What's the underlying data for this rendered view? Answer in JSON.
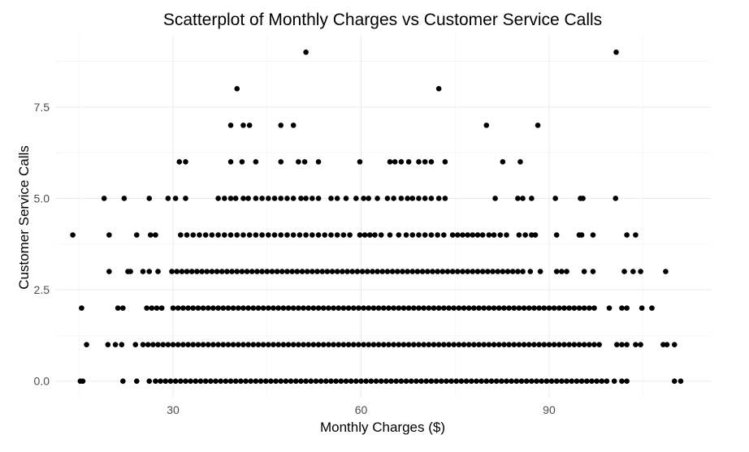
{
  "chart_data": {
    "type": "scatter",
    "title": "Scatterplot of Monthly Charges vs Customer Service Calls",
    "xlabel": "Monthly Charges ($)",
    "ylabel": "Customer Service Calls",
    "xlim": [
      11.2,
      115.8
    ],
    "ylim": [
      -0.45,
      9.45
    ],
    "x_ticks": [
      30,
      60,
      90
    ],
    "x_tick_labels": [
      "30",
      "60",
      "90"
    ],
    "y_ticks": [
      0,
      2.5,
      5,
      7.5
    ],
    "y_tick_labels": [
      "0.0",
      "2.5",
      "5.0",
      "7.5"
    ],
    "grid": true,
    "theme": "minimal",
    "point_color": "#000000",
    "points_by_calls": [
      {
        "calls": 9,
        "x": [
          51.2,
          100.7
        ]
      },
      {
        "calls": 8,
        "x": [
          40.2,
          72.4
        ]
      },
      {
        "calls": 7,
        "x": [
          39.2,
          41.2,
          42.2,
          47.2,
          49.2,
          80.0,
          88.2
        ]
      },
      {
        "calls": 6,
        "x": [
          31.0,
          32.0,
          39.2,
          41.0,
          43.2,
          47.2,
          50.0,
          51.0,
          53.2,
          59.8,
          64.6,
          65.4,
          66.4,
          67.6,
          69.2,
          70.2,
          71.2,
          73.4,
          82.6,
          85.4
        ]
      },
      {
        "calls": 5,
        "x": [
          19.0,
          22.2,
          26.2,
          29.2,
          30.4,
          32.0,
          37.2,
          38.2,
          39.2,
          40.0,
          41.2,
          42.0,
          43.2,
          44.2,
          45.2,
          46.2,
          47.2,
          48.2,
          49.2,
          50.4,
          51.2,
          52.2,
          53.2,
          55.2,
          56.2,
          57.6,
          59.2,
          60.4,
          61.2,
          62.6,
          64.2,
          65.2,
          66.4,
          67.4,
          68.2,
          69.2,
          70.2,
          71.2,
          72.4,
          73.4,
          81.4,
          85.0,
          85.8,
          87.2,
          91.0,
          95.0,
          95.4,
          100.6
        ]
      },
      {
        "calls": 4,
        "x": [
          14.0,
          19.8,
          24.2,
          26.4,
          27.2,
          31.2,
          32.2,
          33.2,
          34.2,
          35.2,
          36.2,
          37.2,
          38.2,
          39.2,
          40.2,
          41.2,
          42.2,
          43.2,
          44.2,
          45.2,
          46.2,
          47.2,
          48.2,
          49.2,
          50.2,
          51.2,
          52.2,
          53.2,
          54.2,
          55.2,
          56.2,
          57.2,
          58.2,
          59.8,
          60.6,
          61.4,
          62.2,
          63.2,
          64.6,
          66.0,
          67.2,
          68.2,
          69.2,
          70.2,
          71.2,
          72.2,
          73.2,
          74.6,
          75.4,
          76.2,
          77.0,
          77.8,
          78.6,
          79.4,
          80.4,
          81.2,
          82.2,
          83.2,
          85.2,
          86.2,
          87.2,
          87.8,
          91.2,
          94.8,
          95.2,
          97.0,
          102.4,
          103.8
        ]
      },
      {
        "calls": 3,
        "x": [
          19.8,
          22.8,
          23.2,
          25.2,
          26.2,
          27.6,
          29.8,
          30.6,
          31.4,
          32.2,
          33.0,
          33.8,
          34.6,
          35.4,
          36.2,
          37.0,
          37.8,
          38.6,
          39.4,
          40.2,
          41.0,
          41.8,
          42.6,
          43.4,
          44.2,
          45.0,
          45.8,
          46.6,
          47.4,
          48.2,
          49.0,
          49.8,
          50.6,
          51.4,
          52.2,
          53.0,
          53.8,
          54.6,
          55.4,
          56.2,
          57.0,
          57.8,
          58.6,
          59.4,
          60.2,
          61.0,
          61.8,
          62.6,
          63.4,
          64.2,
          65.0,
          65.8,
          66.6,
          67.4,
          68.2,
          69.0,
          69.8,
          70.6,
          71.4,
          72.2,
          73.0,
          73.8,
          74.6,
          75.4,
          76.2,
          77.0,
          77.8,
          78.6,
          79.4,
          80.2,
          81.0,
          81.8,
          82.6,
          83.4,
          84.2,
          85.0,
          85.8,
          87.0,
          88.6,
          91.2,
          92.0,
          92.8,
          95.6,
          97.0,
          102.0,
          103.4,
          104.6,
          108.6
        ]
      },
      {
        "calls": 2,
        "x": [
          15.4,
          21.2,
          22.0,
          25.8,
          26.6,
          27.4,
          28.2,
          30.0,
          30.8,
          31.6,
          32.4,
          33.2,
          34.0,
          34.8,
          35.6,
          36.4,
          37.2,
          38.0,
          38.8,
          39.6,
          40.4,
          41.2,
          42.0,
          42.8,
          43.6,
          44.4,
          45.2,
          46.0,
          46.8,
          47.6,
          48.4,
          49.2,
          50.0,
          50.8,
          51.6,
          52.4,
          53.2,
          54.0,
          54.8,
          55.6,
          56.4,
          57.2,
          58.0,
          58.8,
          59.6,
          60.4,
          61.2,
          62.0,
          62.8,
          63.6,
          64.4,
          65.2,
          66.0,
          66.8,
          67.6,
          68.4,
          69.2,
          70.0,
          70.8,
          71.6,
          72.4,
          73.2,
          74.0,
          74.8,
          75.6,
          76.4,
          77.2,
          78.0,
          78.8,
          79.6,
          80.4,
          81.2,
          82.0,
          82.8,
          83.6,
          84.4,
          85.2,
          86.0,
          86.8,
          87.6,
          88.4,
          89.2,
          90.0,
          90.8,
          91.6,
          92.4,
          93.2,
          94.0,
          94.8,
          95.6,
          96.4,
          97.2,
          99.6,
          101.6,
          102.4,
          104.8,
          106.4
        ]
      },
      {
        "calls": 1,
        "x": [
          16.2,
          19.6,
          20.8,
          21.8,
          24.0,
          25.2,
          26.0,
          26.8,
          27.6,
          28.4,
          29.2,
          30.0,
          30.8,
          31.6,
          32.4,
          33.2,
          34.0,
          34.8,
          35.6,
          36.4,
          37.2,
          38.0,
          38.8,
          39.6,
          40.4,
          41.2,
          42.0,
          42.8,
          43.6,
          44.4,
          45.2,
          46.0,
          46.8,
          47.6,
          48.4,
          49.2,
          50.0,
          50.8,
          51.6,
          52.4,
          53.2,
          54.0,
          54.8,
          55.6,
          56.4,
          57.2,
          58.0,
          58.8,
          59.6,
          60.4,
          61.2,
          62.0,
          62.8,
          63.6,
          64.4,
          65.2,
          66.0,
          66.8,
          67.6,
          68.4,
          69.2,
          70.0,
          70.8,
          71.6,
          72.4,
          73.2,
          74.0,
          74.8,
          75.6,
          76.4,
          77.2,
          78.0,
          78.8,
          79.6,
          80.4,
          81.2,
          82.0,
          82.8,
          83.6,
          84.4,
          85.2,
          86.0,
          86.8,
          87.6,
          88.4,
          89.2,
          90.0,
          90.8,
          91.6,
          92.4,
          93.2,
          94.0,
          94.8,
          95.6,
          96.4,
          97.2,
          98.0,
          100.8,
          101.6,
          102.4,
          103.8,
          104.6,
          108.2,
          108.8,
          110.0
        ]
      },
      {
        "calls": 0,
        "x": [
          15.2,
          15.6,
          22.0,
          24.2,
          26.2,
          27.2,
          28.0,
          28.8,
          29.6,
          30.4,
          31.2,
          32.0,
          32.8,
          33.6,
          34.4,
          35.2,
          36.0,
          36.8,
          37.6,
          38.4,
          39.2,
          40.0,
          40.8,
          41.6,
          42.4,
          43.2,
          44.0,
          44.8,
          45.6,
          46.4,
          47.2,
          48.0,
          48.8,
          49.6,
          50.4,
          51.2,
          52.0,
          52.8,
          53.6,
          54.4,
          55.2,
          56.0,
          56.8,
          57.6,
          58.4,
          59.2,
          60.0,
          60.8,
          61.6,
          62.4,
          63.2,
          64.0,
          64.8,
          65.6,
          66.4,
          67.2,
          68.0,
          68.8,
          69.6,
          70.4,
          71.2,
          72.0,
          72.8,
          73.6,
          74.4,
          75.2,
          76.0,
          76.8,
          77.6,
          78.4,
          79.2,
          80.0,
          80.8,
          81.6,
          82.4,
          83.2,
          84.0,
          84.8,
          85.6,
          86.4,
          87.2,
          88.0,
          88.8,
          89.6,
          90.4,
          91.2,
          92.0,
          92.8,
          93.6,
          94.4,
          95.2,
          96.0,
          96.8,
          97.6,
          98.4,
          99.2,
          100.4,
          101.6,
          102.4,
          110.0,
          111.0
        ]
      }
    ]
  }
}
